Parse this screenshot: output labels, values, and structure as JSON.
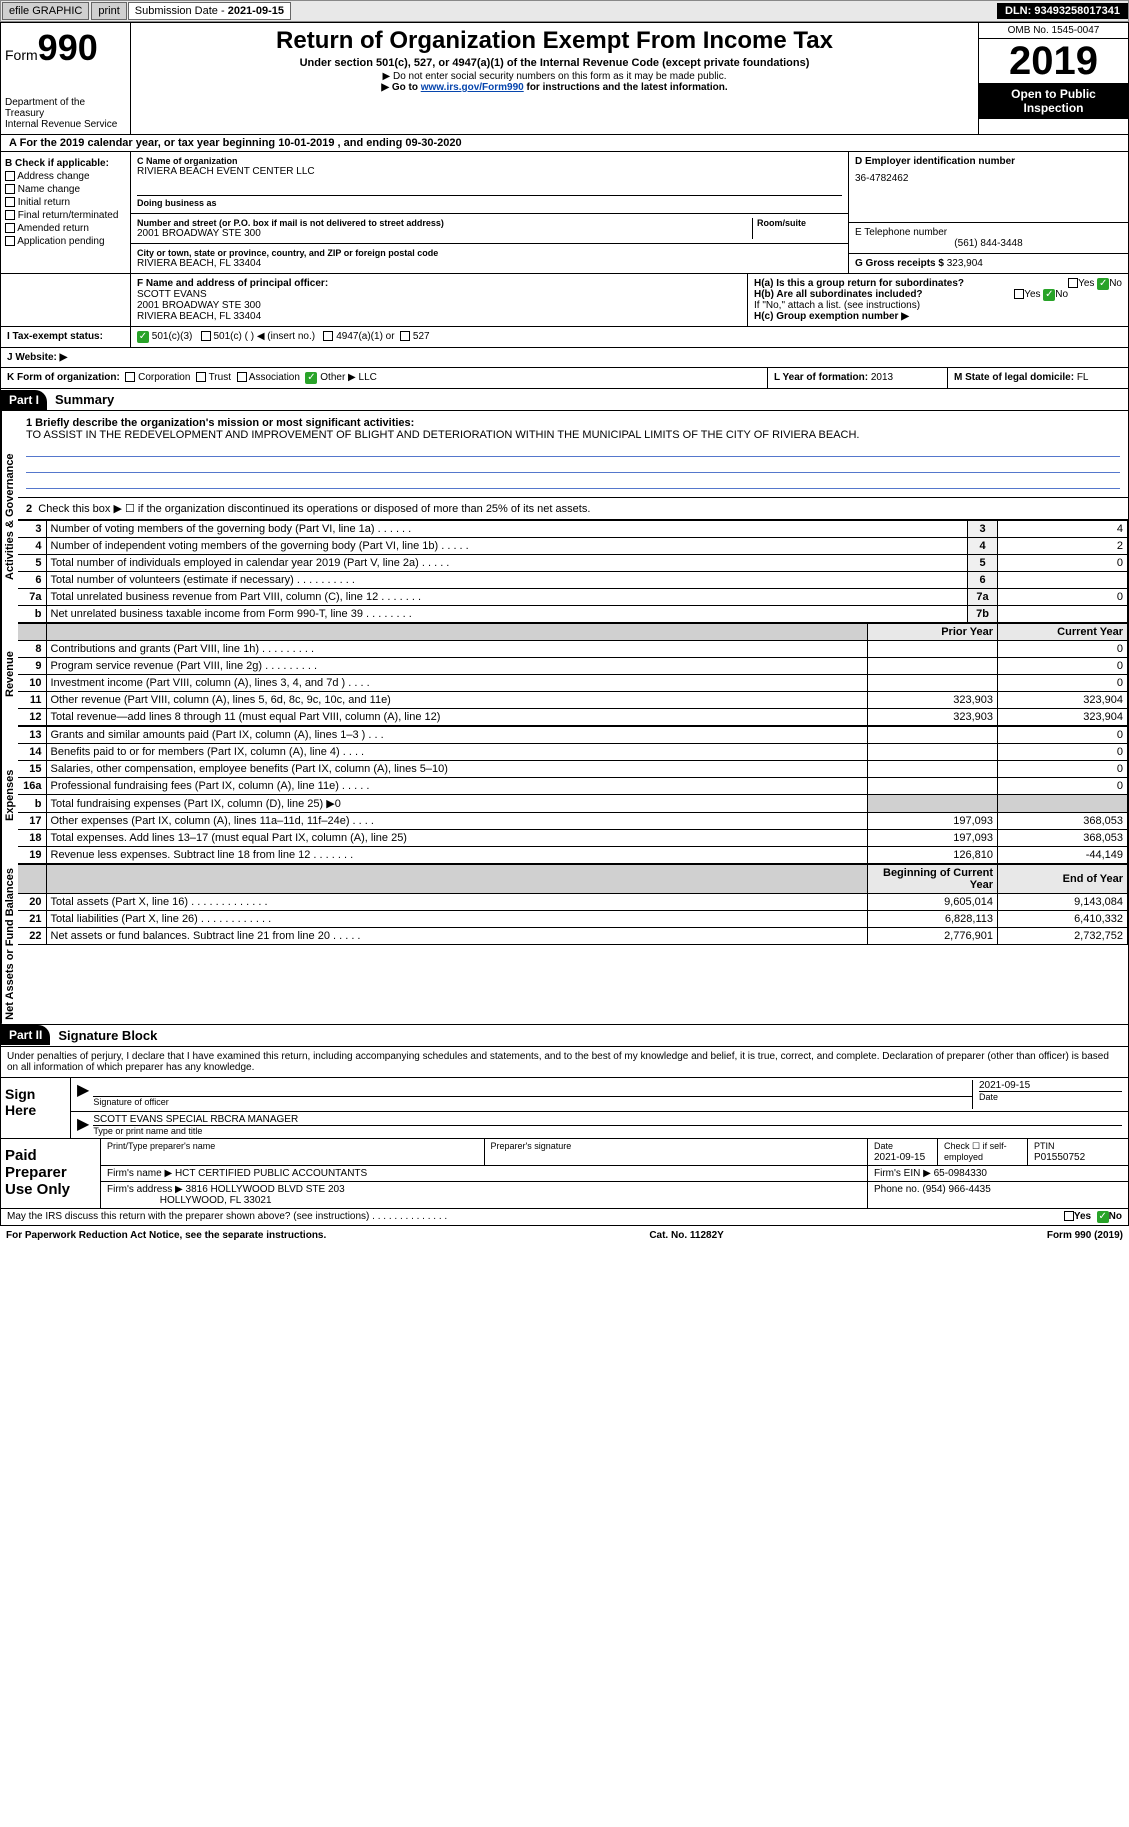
{
  "topbar": {
    "efile": "efile GRAPHIC",
    "print": "print",
    "sub_label": "Submission Date - ",
    "sub_date": "2021-09-15",
    "dln": "DLN: 93493258017341"
  },
  "header": {
    "form_prefix": "Form",
    "form_num": "990",
    "dept": "Department of the Treasury\nInternal Revenue Service",
    "title": "Return of Organization Exempt From Income Tax",
    "subtitle": "Under section 501(c), 527, or 4947(a)(1) of the Internal Revenue Code (except private foundations)",
    "note1": "▶ Do not enter social security numbers on this form as it may be made public.",
    "note2_a": "▶ Go to ",
    "note2_link": "www.irs.gov/Form990",
    "note2_b": " for instructions and the latest information.",
    "omb": "OMB No. 1545-0047",
    "year": "2019",
    "open": "Open to Public Inspection"
  },
  "period": "For the 2019 calendar year, or tax year beginning 10-01-2019   , and ending 09-30-2020",
  "box_b": {
    "title": "B Check if applicable:",
    "items": [
      "Address change",
      "Name change",
      "Initial return",
      "Final return/terminated",
      "Amended return",
      "Application pending"
    ]
  },
  "box_c": {
    "label": "C Name of organization",
    "name": "RIVIERA BEACH EVENT CENTER LLC",
    "dba_label": "Doing business as",
    "addr_label": "Number and street (or P.O. box if mail is not delivered to street address)",
    "room_label": "Room/suite",
    "addr": "2001 BROADWAY STE 300",
    "city_label": "City or town, state or province, country, and ZIP or foreign postal code",
    "city": "RIVIERA BEACH, FL  33404"
  },
  "box_d": {
    "label": "D Employer identification number",
    "val": "36-4782462"
  },
  "box_e": {
    "label": "E Telephone number",
    "val": "(561) 844-3448"
  },
  "box_g": {
    "label": "G Gross receipts $",
    "val": "323,904"
  },
  "box_f": {
    "label": "F  Name and address of principal officer:",
    "name": "SCOTT EVANS",
    "addr1": "2001 BROADWAY STE 300",
    "addr2": "RIVIERA BEACH, FL  33404"
  },
  "box_h": {
    "a": "H(a)  Is this a group return for subordinates?",
    "b": "H(b)  Are all subordinates included?",
    "b_note": "If \"No,\" attach a list. (see instructions)",
    "c": "H(c)  Group exemption number ▶",
    "yes": "Yes",
    "no": "No"
  },
  "box_i": {
    "label": "I  Tax-exempt status:",
    "opts": [
      "501(c)(3)",
      "501(c) (  ) ◀ (insert no.)",
      "4947(a)(1) or",
      "527"
    ]
  },
  "box_j": {
    "label": "J  Website: ▶"
  },
  "box_k": {
    "label": "K Form of organization:",
    "opts": [
      "Corporation",
      "Trust",
      "Association",
      "Other ▶"
    ],
    "other": "LLC"
  },
  "box_l": {
    "label": "L Year of formation:",
    "val": "2013"
  },
  "box_m": {
    "label": "M State of legal domicile:",
    "val": "FL"
  },
  "part1": {
    "header": "Part I",
    "title": "Summary",
    "line1_label": "1  Briefly describe the organization's mission or most significant activities:",
    "mission": "TO ASSIST IN THE REDEVELOPMENT AND IMPROVEMENT OF BLIGHT AND DETERIORATION WITHIN THE MUNICIPAL LIMITS OF THE CITY OF RIVIERA BEACH.",
    "line2": "Check this box ▶ ☐  if the organization discontinued its operations or disposed of more than 25% of its net assets.",
    "sections": {
      "gov": "Activities & Governance",
      "rev": "Revenue",
      "exp": "Expenses",
      "net": "Net Assets or Fund Balances"
    },
    "col_prior": "Prior Year",
    "col_curr": "Current Year",
    "col_begin": "Beginning of Current Year",
    "col_end": "End of Year",
    "rows_gov": [
      {
        "n": "3",
        "d": "Number of voting members of the governing body (Part VI, line 1a)   .    .    .    .    .    .",
        "box": "3",
        "v": "4"
      },
      {
        "n": "4",
        "d": "Number of independent voting members of the governing body (Part VI, line 1b)   .    .    .    .    .",
        "box": "4",
        "v": "2"
      },
      {
        "n": "5",
        "d": "Total number of individuals employed in calendar year 2019 (Part V, line 2a)   .    .    .    .    .",
        "box": "5",
        "v": "0"
      },
      {
        "n": "6",
        "d": "Total number of volunteers (estimate if necessary)   .    .    .    .    .    .    .    .    .    .",
        "box": "6",
        "v": ""
      },
      {
        "n": "7a",
        "d": "Total unrelated business revenue from Part VIII, column (C), line 12   .    .    .    .    .    .    .",
        "box": "7a",
        "v": "0"
      },
      {
        "n": "b",
        "d": "Net unrelated business taxable income from Form 990-T, line 39   .    .    .    .    .    .    .    .",
        "box": "7b",
        "v": ""
      }
    ],
    "rows_rev": [
      {
        "n": "8",
        "d": "Contributions and grants (Part VIII, line 1h)   .    .    .    .    .    .    .    .    .",
        "p": "",
        "c": "0"
      },
      {
        "n": "9",
        "d": "Program service revenue (Part VIII, line 2g)   .    .    .    .    .    .    .    .    .",
        "p": "",
        "c": "0"
      },
      {
        "n": "10",
        "d": "Investment income (Part VIII, column (A), lines 3, 4, and 7d )   .    .    .    .",
        "p": "",
        "c": "0"
      },
      {
        "n": "11",
        "d": "Other revenue (Part VIII, column (A), lines 5, 6d, 8c, 9c, 10c, and 11e)",
        "p": "323,903",
        "c": "323,904"
      },
      {
        "n": "12",
        "d": "Total revenue—add lines 8 through 11 (must equal Part VIII, column (A), line 12)",
        "p": "323,903",
        "c": "323,904"
      }
    ],
    "rows_exp": [
      {
        "n": "13",
        "d": "Grants and similar amounts paid (Part IX, column (A), lines 1–3 )   .    .    .",
        "p": "",
        "c": "0"
      },
      {
        "n": "14",
        "d": "Benefits paid to or for members (Part IX, column (A), line 4)   .    .    .    .",
        "p": "",
        "c": "0"
      },
      {
        "n": "15",
        "d": "Salaries, other compensation, employee benefits (Part IX, column (A), lines 5–10)",
        "p": "",
        "c": "0"
      },
      {
        "n": "16a",
        "d": "Professional fundraising fees (Part IX, column (A), line 11e)   .    .    .    .    .",
        "p": "",
        "c": "0"
      },
      {
        "n": "b",
        "d": "Total fundraising expenses (Part IX, column (D), line 25) ▶0",
        "p": "shaded",
        "c": "shaded"
      },
      {
        "n": "17",
        "d": "Other expenses (Part IX, column (A), lines 11a–11d, 11f–24e)   .    .    .    .",
        "p": "197,093",
        "c": "368,053"
      },
      {
        "n": "18",
        "d": "Total expenses. Add lines 13–17 (must equal Part IX, column (A), line 25)",
        "p": "197,093",
        "c": "368,053"
      },
      {
        "n": "19",
        "d": "Revenue less expenses. Subtract line 18 from line 12   .    .    .    .    .    .    .",
        "p": "126,810",
        "c": "-44,149"
      }
    ],
    "rows_net": [
      {
        "n": "20",
        "d": "Total assets (Part X, line 16)   .    .    .    .    .    .    .    .    .    .    .    .    .",
        "p": "9,605,014",
        "c": "9,143,084"
      },
      {
        "n": "21",
        "d": "Total liabilities (Part X, line 26)   .    .    .    .    .    .    .    .    .    .    .    .",
        "p": "6,828,113",
        "c": "6,410,332"
      },
      {
        "n": "22",
        "d": "Net assets or fund balances. Subtract line 21 from line 20   .    .    .    .    .",
        "p": "2,776,901",
        "c": "2,732,752"
      }
    ]
  },
  "part2": {
    "header": "Part II",
    "title": "Signature Block",
    "penalty": "Under penalties of perjury, I declare that I have examined this return, including accompanying schedules and statements, and to the best of my knowledge and belief, it is true, correct, and complete. Declaration of preparer (other than officer) is based on all information of which preparer has any knowledge."
  },
  "sign": {
    "label": "Sign Here",
    "sig_label": "Signature of officer",
    "date": "2021-09-15",
    "date_label": "Date",
    "name": "SCOTT EVANS SPECIAL RBCRA MANAGER",
    "name_label": "Type or print name and title"
  },
  "preparer": {
    "label": "Paid Preparer Use Only",
    "h1": "Print/Type preparer's name",
    "h2": "Preparer's signature",
    "h3": "Date",
    "h3v": "2021-09-15",
    "h4": "Check ☐ if self-employed",
    "h5": "PTIN",
    "h5v": "P01550752",
    "firm_label": "Firm's name    ▶",
    "firm": "HCT CERTIFIED PUBLIC ACCOUNTANTS",
    "ein_label": "Firm's EIN ▶",
    "ein": "65-0984330",
    "addr_label": "Firm's address ▶",
    "addr": "3816 HOLLYWOOD BLVD STE 203",
    "addr2": "HOLLYWOOD, FL  33021",
    "phone_label": "Phone no.",
    "phone": "(954) 966-4435"
  },
  "discuss": {
    "text": "May the IRS discuss this return with the preparer shown above? (see instructions)   .    .    .    .    .    .    .    .    .    .    .    .    .    .",
    "yes": "Yes",
    "no": "No"
  },
  "footer": {
    "left": "For Paperwork Reduction Act Notice, see the separate instructions.",
    "mid": "Cat. No. 11282Y",
    "right": "Form 990 (2019)"
  },
  "colors": {
    "link": "#0645ad",
    "check_green": "#29a329",
    "line_blue": "#5577cc"
  }
}
